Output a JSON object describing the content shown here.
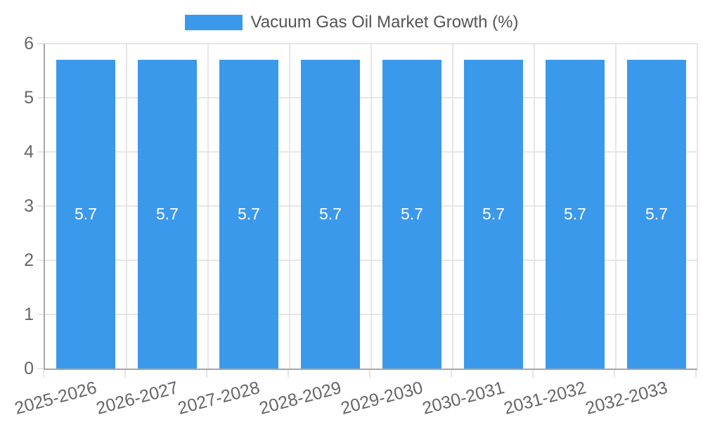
{
  "chart_data": {
    "type": "bar",
    "title": "Vacuum Gas Oil Market Growth (%)",
    "legend_entries": [
      "Vacuum Gas Oil Market Growth (%)"
    ],
    "legend_position": "top",
    "categories": [
      "2025-2026",
      "2026-2027",
      "2027-2028",
      "2028-2029",
      "2029-2030",
      "2030-2031",
      "2031-2032",
      "2032-2033"
    ],
    "values": [
      5.7,
      5.7,
      5.7,
      5.7,
      5.7,
      5.7,
      5.7,
      5.7
    ],
    "value_labels": [
      "5.7",
      "5.7",
      "5.7",
      "5.7",
      "5.7",
      "5.7",
      "5.7",
      "5.7"
    ],
    "xlabel": "",
    "ylabel": "",
    "ylim": [
      0,
      6
    ],
    "yticks": [
      0,
      1,
      2,
      3,
      4,
      5,
      6
    ],
    "ytick_labels": [
      "0",
      "1",
      "2",
      "3",
      "4",
      "5",
      "6"
    ],
    "grid": true,
    "x_label_rotation_deg": -15,
    "colors": {
      "bar": "#3b99ec",
      "value_label": "#ffffff",
      "tick_label": "#666666",
      "legend_text": "#545454",
      "grid": "#e6e6e6",
      "axis": "#a6a6a6",
      "background": "#ffffff"
    }
  }
}
